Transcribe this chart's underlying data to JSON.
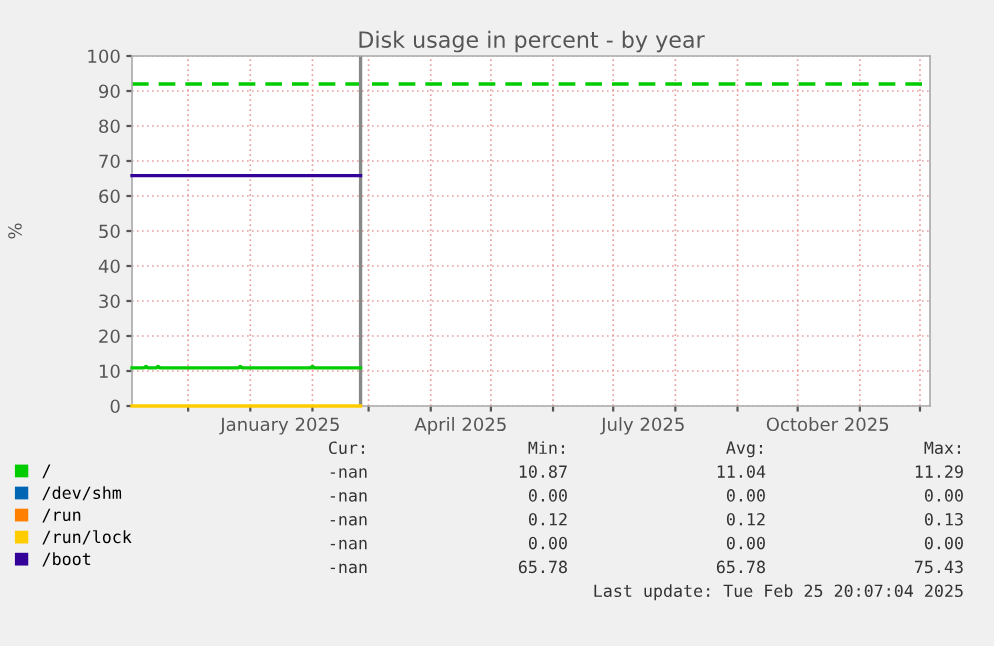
{
  "chart_data": {
    "type": "line",
    "title": "Disk usage in percent - by year",
    "ylabel": "%",
    "xlim": [
      "2024-11-03",
      "2025-12-06"
    ],
    "ylim": [
      0,
      100
    ],
    "yticks": [
      0,
      10,
      20,
      30,
      40,
      50,
      60,
      70,
      80,
      90,
      100
    ],
    "xticks": [
      {
        "value": "2024-12-01",
        "label": null
      },
      {
        "value": "2025-01-01",
        "label": null
      },
      {
        "value": "2025-01-16",
        "label": "January 2025"
      },
      {
        "value": "2025-02-01",
        "label": null
      },
      {
        "value": "2025-03-01",
        "label": null
      },
      {
        "value": "2025-04-01",
        "label": null
      },
      {
        "value": "2025-04-16",
        "label": "April 2025"
      },
      {
        "value": "2025-05-01",
        "label": null
      },
      {
        "value": "2025-06-01",
        "label": null
      },
      {
        "value": "2025-07-01",
        "label": null
      },
      {
        "value": "2025-07-16",
        "label": "July 2025"
      },
      {
        "value": "2025-08-01",
        "label": null
      },
      {
        "value": "2025-09-01",
        "label": null
      },
      {
        "value": "2025-10-01",
        "label": null
      },
      {
        "value": "2025-10-16",
        "label": "October 2025"
      },
      {
        "value": "2025-11-01",
        "label": null
      },
      {
        "value": "2025-12-01",
        "label": null
      }
    ],
    "grid": true,
    "legend": "bottom",
    "marker": "none",
    "line_style": "solid",
    "series": [
      {
        "name": "/",
        "color": "#00cc00",
        "x": [
          "2024-11-03",
          "2024-11-09",
          "2024-11-10",
          "2024-11-11",
          "2024-11-15",
          "2024-11-16",
          "2024-11-17",
          "2024-12-26",
          "2024-12-27",
          "2024-12-28",
          "2025-01-31",
          "2025-02-01",
          "2025-02-02",
          "2025-02-25"
        ],
        "values": [
          10.9,
          10.9,
          11.3,
          10.9,
          10.9,
          11.3,
          10.9,
          10.9,
          11.3,
          10.9,
          10.9,
          11.3,
          10.9,
          10.9
        ]
      },
      {
        "name": "/dev/shm",
        "color": "#0066b3"
      },
      {
        "name": "/run",
        "color": "#ff8000"
      },
      {
        "name": "/run/lock",
        "color": "#ffcc00",
        "x": [
          "2024-11-03",
          "2025-02-25"
        ],
        "values": [
          0,
          0
        ]
      },
      {
        "name": "/boot",
        "color": "#330099",
        "x": [
          "2024-11-03",
          "2025-02-25"
        ],
        "values": [
          65.8,
          65.8
        ]
      }
    ],
    "ref_lines": [
      {
        "axis": "y",
        "value": 92,
        "color": "#00cc00",
        "line_style": "dashed"
      },
      {
        "axis": "x",
        "value": "2025-02-25",
        "color": "#888888",
        "line_style": "solid"
      }
    ],
    "annotations": [
      "Cur:",
      "Min:",
      "Avg:",
      "Max:",
      "-nan",
      "10.87",
      "11.04",
      "11.29",
      "-nan",
      "0.00",
      "0.00",
      "0.00",
      "-nan",
      "0.12",
      "0.12",
      "0.13",
      "-nan",
      "0.00",
      "0.00",
      "0.00",
      "-nan",
      "65.78",
      "65.78",
      "75.43",
      "Last update: Tue Feb 25 20:07:04 2025"
    ]
  }
}
